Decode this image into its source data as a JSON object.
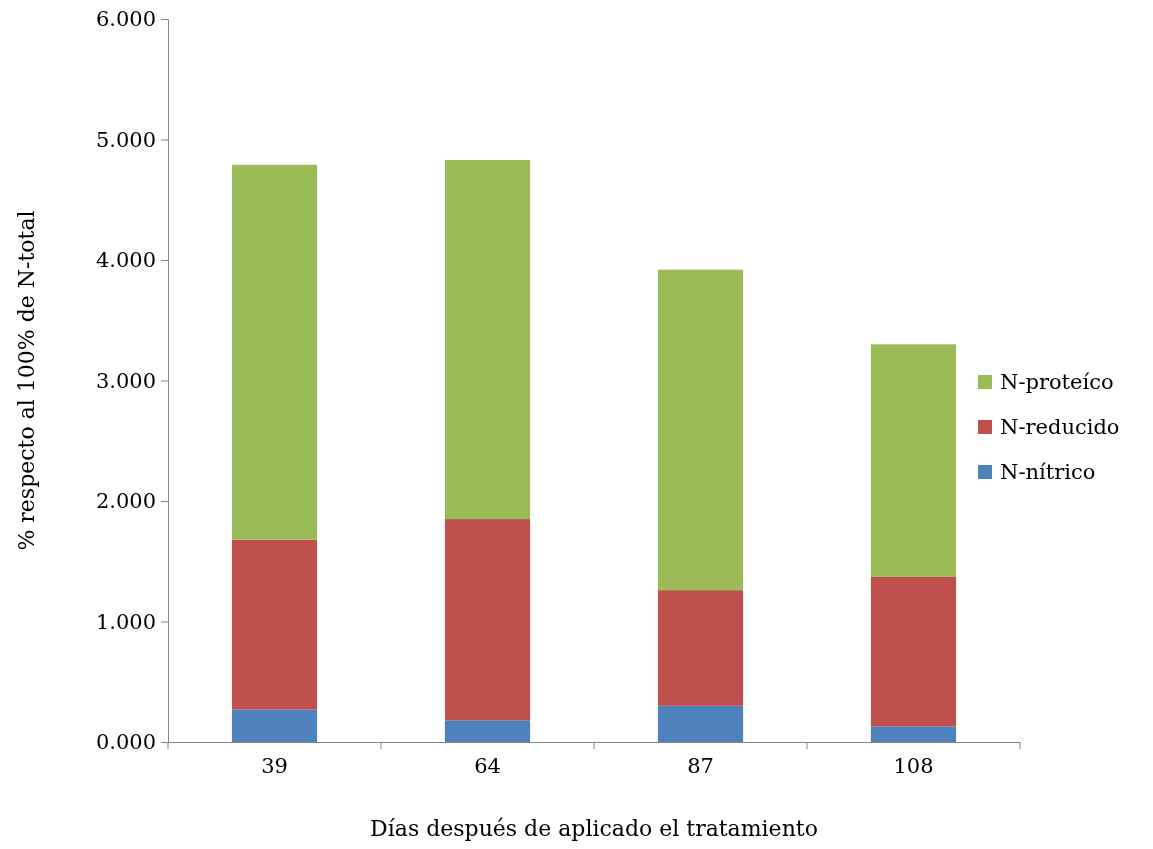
{
  "chart_data": {
    "type": "bar",
    "stacked": true,
    "xlabel": "Días después de aplicado el tratamiento",
    "ylabel": "% respecto al 100% de N-total",
    "categories": [
      "39",
      "64",
      "87",
      "108"
    ],
    "series": [
      {
        "name": "N-nítrico",
        "color": "#4f81bd",
        "values": [
          0.27,
          0.18,
          0.3,
          0.13
        ]
      },
      {
        "name": "N-reducido",
        "color": "#c0504d",
        "values": [
          1.41,
          1.67,
          0.96,
          1.24
        ]
      },
      {
        "name": "N-proteíco",
        "color": "#9bbb59",
        "values": [
          3.11,
          2.98,
          2.66,
          1.93
        ]
      }
    ],
    "ylim": [
      0,
      6
    ],
    "yticks": [
      {
        "value": 0,
        "label": "0.000"
      },
      {
        "value": 1,
        "label": "1.000"
      },
      {
        "value": 2,
        "label": "2.000"
      },
      {
        "value": 3,
        "label": "3.000"
      },
      {
        "value": 4,
        "label": "4.000"
      },
      {
        "value": 5,
        "label": "5.000"
      },
      {
        "value": 6,
        "label": "6.000"
      }
    ],
    "grid": false,
    "legend": "right"
  }
}
